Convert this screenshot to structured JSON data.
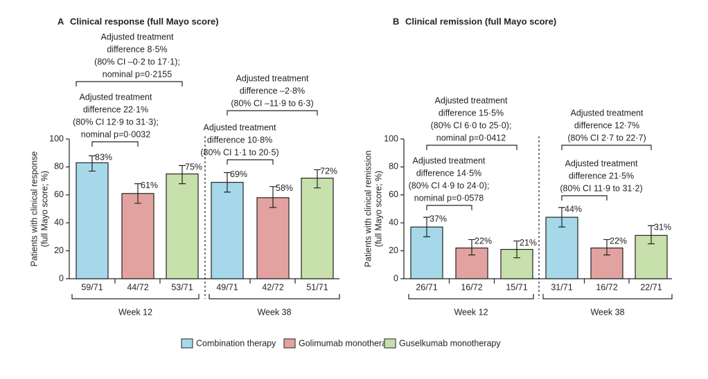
{
  "chart_data": [
    {
      "type": "bar",
      "panel": "A",
      "title": "Clinical response (full Mayo score)",
      "ylabel": [
        "Patients with clinical response",
        "(full Mayo score; %)"
      ],
      "categories": [
        "Week 12",
        "Week 38"
      ],
      "ylim": [
        0,
        100
      ],
      "yticks": [
        0,
        20,
        40,
        60,
        80,
        100
      ],
      "series": [
        {
          "name": "Combination therapy",
          "color": "#a6d8ea",
          "values": [
            83,
            69
          ],
          "value_labels": [
            "83%",
            "69%"
          ],
          "ci_low": [
            77,
            62
          ],
          "ci_high": [
            88,
            76
          ],
          "counts": [
            "59/71",
            "49/71"
          ]
        },
        {
          "name": "Golimumab monotherapy",
          "color": "#e2a3a0",
          "values": [
            61,
            58
          ],
          "value_labels": [
            "61%",
            "58%"
          ],
          "ci_low": [
            54,
            51
          ],
          "ci_high": [
            68,
            66
          ],
          "counts": [
            "44/72",
            "42/72"
          ]
        },
        {
          "name": "Guselkumab monotherapy",
          "color": "#c8e0ac",
          "values": [
            75,
            72
          ],
          "value_labels": [
            "75%",
            "72%"
          ],
          "ci_low": [
            68,
            65
          ],
          "ci_high": [
            81,
            78
          ],
          "counts": [
            "53/71",
            "51/71"
          ]
        }
      ],
      "annotations": [
        [
          "Adjusted treatment",
          "difference 22·1%",
          "(80% CI 12·9 to 31·3);",
          "nominal p=0·0032"
        ],
        [
          "Adjusted treatment",
          "difference 8·5%",
          "(80% CI –0·2 to 17·1);",
          "nominal p=0·2155"
        ],
        [
          "Adjusted treatment",
          "difference 10·8%",
          "(80% CI 1·1 to 20·5)"
        ],
        [
          "Adjusted treatment",
          "difference –2·8%",
          "(80% CI –11·9 to 6·3)"
        ]
      ]
    },
    {
      "type": "bar",
      "panel": "B",
      "title": "Clinical remission (full Mayo score)",
      "ylabel": [
        "Patients with clinical remission",
        "(full Mayo score; %)"
      ],
      "categories": [
        "Week 12",
        "Week 38"
      ],
      "ylim": [
        0,
        100
      ],
      "yticks": [
        0,
        20,
        40,
        60,
        80,
        100
      ],
      "series": [
        {
          "color": "#a6d8ea",
          "values": [
            37,
            44
          ],
          "value_labels": [
            "37%",
            "44%"
          ],
          "ci_low": [
            30,
            37
          ],
          "ci_high": [
            44,
            51
          ],
          "counts": [
            "26/71",
            "31/71"
          ]
        },
        {
          "color": "#e2a3a0",
          "values": [
            22,
            22
          ],
          "value_labels": [
            "22%",
            "22%"
          ],
          "ci_low": [
            17,
            17
          ],
          "ci_high": [
            28,
            28
          ],
          "counts": [
            "16/72",
            "16/72"
          ]
        },
        {
          "color": "#c8e0ac",
          "values": [
            21,
            31
          ],
          "value_labels": [
            "21%",
            "31%"
          ],
          "ci_low": [
            15,
            25
          ],
          "ci_high": [
            27,
            38
          ],
          "counts": [
            "15/71",
            "22/71"
          ]
        }
      ],
      "annotations": [
        [
          "Adjusted treatment",
          "difference 14·5%",
          "(80% CI 4·9 to 24·0);",
          "nominal p=0·0578"
        ],
        [
          "Adjusted treatment",
          "difference 15·5%",
          "(80% CI 6·0 to 25·0);",
          "nominal p=0·0412"
        ],
        [
          "Adjusted treatment",
          "difference 21·5%",
          "(80% CI 11·9 to 31·2)"
        ],
        [
          "Adjusted treatment",
          "difference 12·7%",
          "(80% CI 2·7 to 22·7)"
        ]
      ]
    }
  ]
}
